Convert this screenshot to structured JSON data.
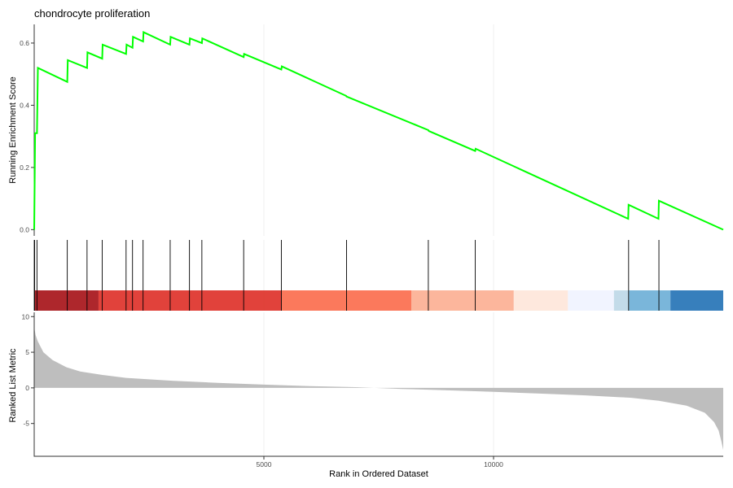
{
  "chart_data": {
    "type": "line",
    "title": "chondrocyte proliferation",
    "xlabel": "Rank in Ordered Dataset",
    "x_ticks": [
      5000,
      10000
    ],
    "xlim": [
      0,
      15000
    ],
    "grid": true,
    "panels": {
      "enrichment": {
        "ylabel": "Running Enrichment Score",
        "y_ticks": [
          "0.0",
          "0.2",
          "0.4",
          "0.6"
        ],
        "ylim": [
          -0.02,
          0.66
        ],
        "color": "#00ff00",
        "points": [
          [
            0,
            0.0
          ],
          [
            20,
            0.31
          ],
          [
            60,
            0.31
          ],
          [
            80,
            0.52
          ],
          [
            720,
            0.475
          ],
          [
            730,
            0.545
          ],
          [
            1150,
            0.52
          ],
          [
            1160,
            0.57
          ],
          [
            1480,
            0.55
          ],
          [
            1490,
            0.595
          ],
          [
            2000,
            0.565
          ],
          [
            2010,
            0.595
          ],
          [
            2140,
            0.585
          ],
          [
            2150,
            0.62
          ],
          [
            2370,
            0.605
          ],
          [
            2380,
            0.635
          ],
          [
            2960,
            0.595
          ],
          [
            2970,
            0.62
          ],
          [
            3380,
            0.595
          ],
          [
            3390,
            0.615
          ],
          [
            3650,
            0.6
          ],
          [
            3660,
            0.615
          ],
          [
            4560,
            0.555
          ],
          [
            4570,
            0.565
          ],
          [
            5380,
            0.515
          ],
          [
            5390,
            0.525
          ],
          [
            6790,
            0.43
          ],
          [
            6800,
            0.428
          ],
          [
            8580,
            0.32
          ],
          [
            8590,
            0.317
          ],
          [
            9600,
            0.253
          ],
          [
            9610,
            0.26
          ],
          [
            12930,
            0.035
          ],
          [
            12940,
            0.08
          ],
          [
            13590,
            0.035
          ],
          [
            13600,
            0.093
          ],
          [
            15000,
            0.0
          ]
        ]
      },
      "hits": {
        "positions": [
          10,
          60,
          720,
          1150,
          1480,
          2000,
          2140,
          2370,
          2960,
          3380,
          3650,
          4560,
          5380,
          6800,
          8580,
          9600,
          12940,
          13600
        ]
      },
      "color_band": {
        "segments": [
          {
            "start": 0,
            "end": 1400,
            "color": "#a50f15"
          },
          {
            "start": 1400,
            "end": 5380,
            "color": "#de2d26"
          },
          {
            "start": 5380,
            "end": 8210,
            "color": "#fb6a4a"
          },
          {
            "start": 8210,
            "end": 10440,
            "color": "#fcae91"
          },
          {
            "start": 10440,
            "end": 11620,
            "color": "#fee5d9"
          },
          {
            "start": 11620,
            "end": 12620,
            "color": "#eff3ff"
          },
          {
            "start": 12620,
            "end": 12950,
            "color": "#bdd7e7"
          },
          {
            "start": 12950,
            "end": 13850,
            "color": "#6baed6"
          },
          {
            "start": 13850,
            "end": 15000,
            "color": "#2171b5"
          }
        ]
      },
      "ranked_metric": {
        "ylabel": "Ranked List Metric",
        "y_ticks": [
          "-5",
          "0",
          "5",
          "10"
        ],
        "ylim": [
          -9.6,
          10.6
        ],
        "fill": "#bebebe",
        "points": [
          [
            0,
            8.5
          ],
          [
            30,
            7.4
          ],
          [
            80,
            6.5
          ],
          [
            200,
            5.0
          ],
          [
            400,
            3.9
          ],
          [
            700,
            2.9
          ],
          [
            1000,
            2.3
          ],
          [
            1500,
            1.8
          ],
          [
            2000,
            1.4
          ],
          [
            3000,
            1.0
          ],
          [
            4000,
            0.7
          ],
          [
            5000,
            0.45
          ],
          [
            6000,
            0.25
          ],
          [
            7000,
            0.1
          ],
          [
            7400,
            0.0
          ],
          [
            8000,
            -0.15
          ],
          [
            9000,
            -0.35
          ],
          [
            10000,
            -0.55
          ],
          [
            11000,
            -0.8
          ],
          [
            12000,
            -1.05
          ],
          [
            13000,
            -1.4
          ],
          [
            13600,
            -1.8
          ],
          [
            14200,
            -2.5
          ],
          [
            14600,
            -3.5
          ],
          [
            14800,
            -4.8
          ],
          [
            14900,
            -6.0
          ],
          [
            14960,
            -7.5
          ],
          [
            15000,
            -8.7
          ]
        ]
      }
    }
  }
}
